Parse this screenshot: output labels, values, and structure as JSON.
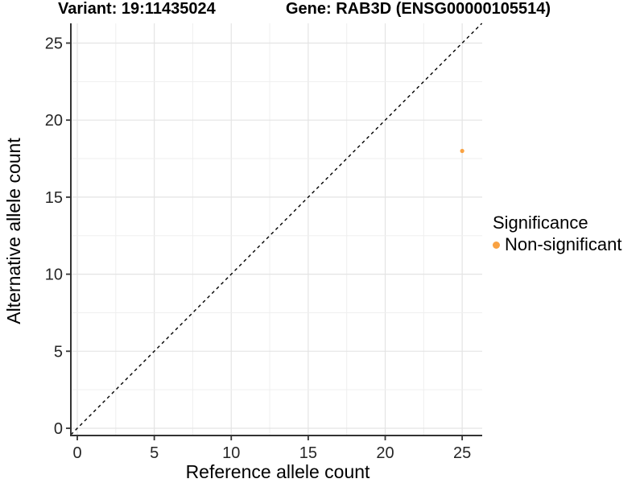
{
  "chart_data": {
    "type": "scatter",
    "titles": {
      "variant": "Variant: 19:11435024",
      "gene": "Gene: RAB3D (ENSG00000105514)"
    },
    "xlabel": "Reference allele count",
    "ylabel": "Alternative allele count",
    "xlim": [
      -0.42,
      26.3
    ],
    "ylim": [
      -0.47,
      26.28
    ],
    "xticks": [
      0,
      5,
      10,
      15,
      20,
      25
    ],
    "yticks": [
      0,
      5,
      10,
      15,
      20,
      25
    ],
    "minor_step": 2.5,
    "grid": true,
    "identity_line": {
      "equation": "y = x",
      "style": "dashed",
      "color": "#000000"
    },
    "series": [
      {
        "name": "Non-significant",
        "color": "#F9A242",
        "points": [
          {
            "x": 25,
            "y": 18
          }
        ]
      }
    ],
    "legend": {
      "title": "Significance",
      "position": "right",
      "entries": [
        {
          "label": "Non-significant",
          "color": "#F9A242"
        }
      ]
    },
    "style": {
      "background": "#FFFFFF",
      "grid_major_color": "#E4E4E4",
      "grid_minor_color": "#EFEFEF",
      "axis_line_color": "#333333",
      "tick_mark_color": "#333333",
      "tick_label_color": "#262626",
      "point_radius": 2.6
    }
  }
}
